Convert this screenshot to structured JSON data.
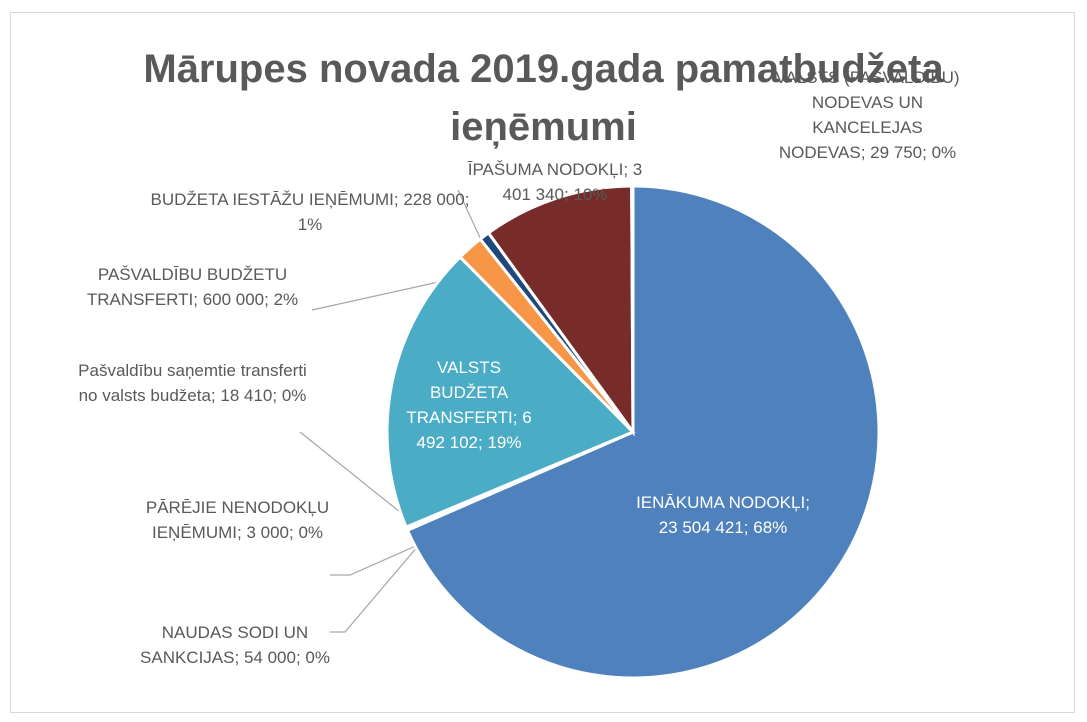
{
  "chart_data": {
    "type": "pie",
    "title": "Mārupes novada 2019.gada pamatbudžeta ieņēmumi",
    "label_separator": "; ",
    "categories": [
      "IENĀKUMA NODOKĻI",
      "NAUDAS SODI UN SANKCIJAS",
      "PĀRĒJIE NENODOKĻU IEŅĒMUMI",
      "Pašvaldību saņemtie transferti no valsts budžeta",
      "VALSTS BUDŽETA TRANSFERTI",
      "PAŠVALDĪBU BUDŽETU TRANSFERTI",
      "BUDŽETA IESTĀŽU IEŅĒMUMI",
      "ĪPAŠUMA NODOKĻI",
      "VALSTS (PAŠVALDĪBU) NODEVAS UN KANCELEJAS NODEVAS"
    ],
    "values": [
      23504421,
      54000,
      3000,
      18410,
      6492102,
      600000,
      228000,
      3401340,
      29750
    ],
    "value_labels": [
      "23 504 421",
      "54 000",
      "3 000",
      "18 410",
      "6 492 102",
      "600 000",
      "228 000",
      "3 401 340",
      "29 750"
    ],
    "percents": [
      68,
      0,
      0,
      0,
      19,
      2,
      1,
      10,
      0
    ],
    "percent_labels": [
      "68%",
      "0%",
      "0%",
      "0%",
      "19%",
      "2%",
      "1%",
      "10%",
      "0%"
    ],
    "colors": [
      "#4f81bd",
      "#9bbb59",
      "#8064a2",
      "#c0504d",
      "#4bacc6",
      "#f79646",
      "#1f497d",
      "#772c2a",
      "#2c4d75"
    ]
  }
}
